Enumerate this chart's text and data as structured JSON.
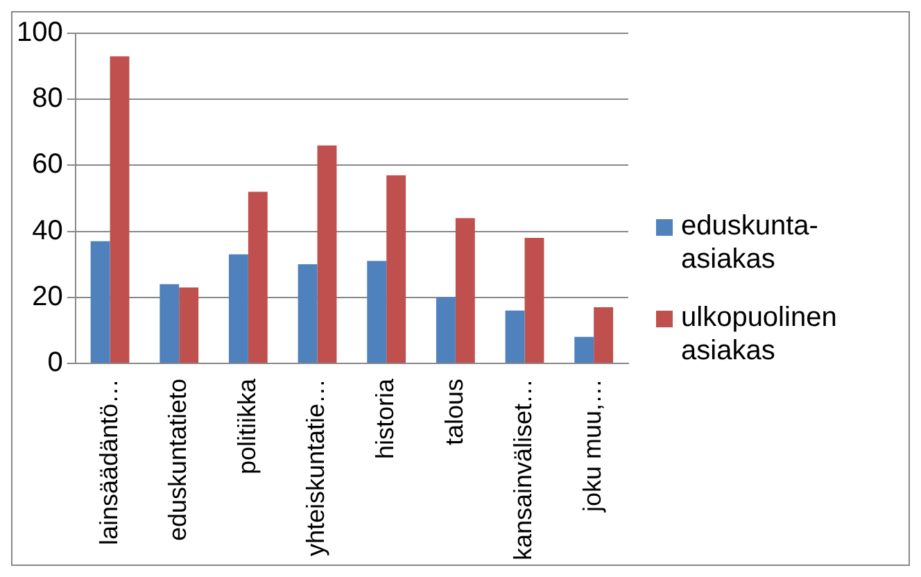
{
  "chart_data": {
    "type": "bar",
    "categories": [
      "lainsäädäntö…",
      "eduskuntatieto",
      "politiikka",
      "yhteiskuntatie…",
      "historia",
      "talous",
      "kansainväliset…",
      "joku muu,…"
    ],
    "series": [
      {
        "name": "eduskunta-asiakas",
        "color": "#4f81bd",
        "values": [
          37,
          24,
          33,
          30,
          31,
          20,
          16,
          8
        ]
      },
      {
        "name": "ulkopuolinen asiakas",
        "color": "#c0504d",
        "values": [
          93,
          23,
          52,
          66,
          57,
          44,
          38,
          17
        ]
      }
    ],
    "ylim": [
      0,
      100
    ],
    "yticks": [
      0,
      20,
      40,
      60,
      80,
      100
    ],
    "grid": "y",
    "legend": "right"
  }
}
